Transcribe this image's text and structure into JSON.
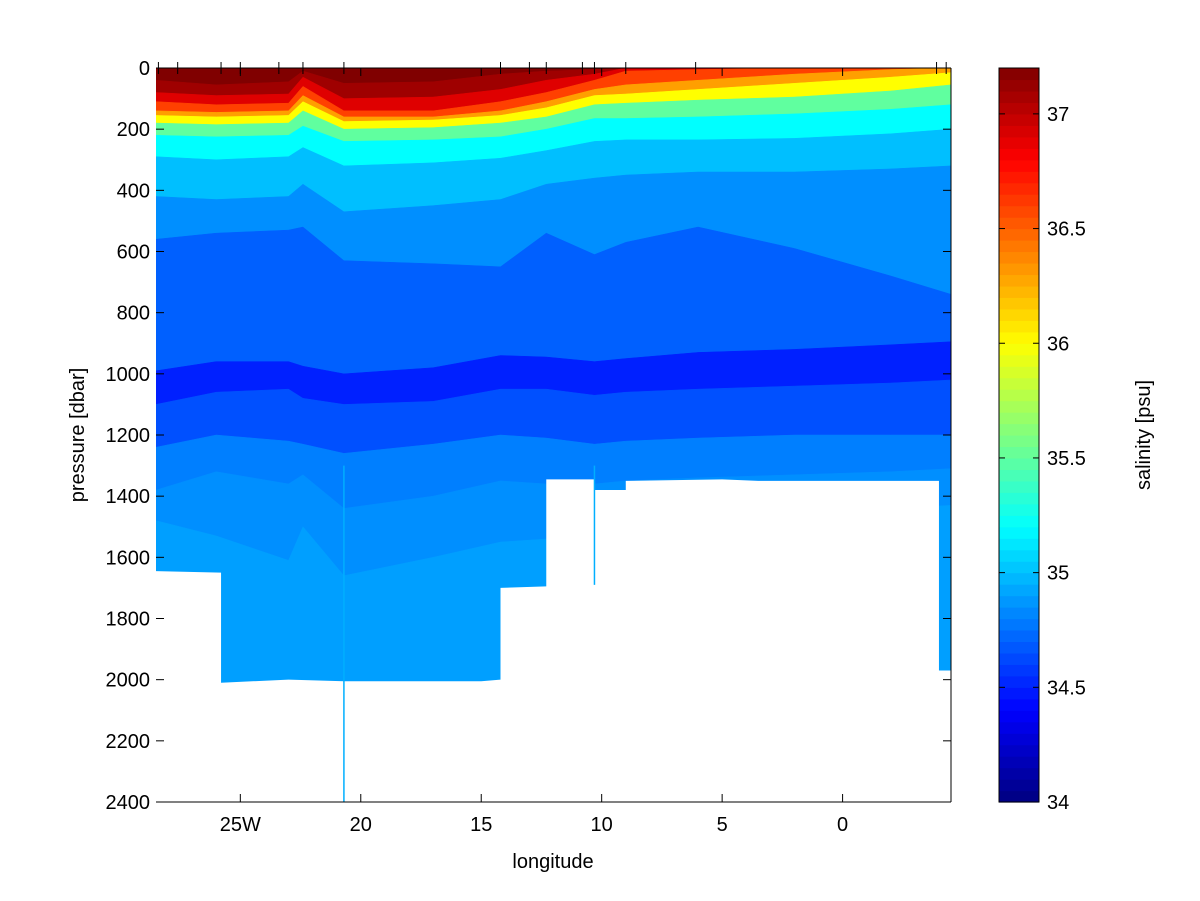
{
  "chart_data": {
    "type": "heatmap",
    "title": "",
    "xlabel": "longitude",
    "ylabel": "pressure [dbar]",
    "colorbar_label": "salinity [psu]",
    "xlim": [
      -28.5,
      4.5
    ],
    "ylim": [
      2400,
      0
    ],
    "clim": [
      34.0,
      37.2
    ],
    "x_ticks": [
      {
        "value": -25,
        "label": "25W"
      },
      {
        "value": -20,
        "label": "20"
      },
      {
        "value": -15,
        "label": "15"
      },
      {
        "value": -10,
        "label": "10"
      },
      {
        "value": -5,
        "label": "5"
      },
      {
        "value": 0,
        "label": "0"
      }
    ],
    "y_ticks": [
      0,
      200,
      400,
      600,
      800,
      1000,
      1200,
      1400,
      1600,
      1800,
      2000,
      2200,
      2400
    ],
    "colorbar_ticks": [
      34,
      34.5,
      35,
      35.5,
      36,
      36.5,
      37
    ],
    "station_longitudes": [
      -28.4,
      -27.6,
      -25.8,
      -25.0,
      -23.4,
      -22.4,
      -20.7,
      -14.2,
      -13.0,
      -12.3,
      -10.8,
      -10.3,
      -9.0,
      -6.1,
      3.9,
      4.3
    ],
    "sections": [
      {
        "x": [
          -28.5,
          -26,
          -23,
          -22.4,
          -20.7,
          -17,
          -14.2,
          -12.3,
          -10.3,
          -9,
          -6,
          -2,
          2,
          4.5
        ],
        "salinity_contours": [
          {
            "level": 37.1,
            "depth": [
              40,
              55,
              45,
              10,
              50,
              45,
              20,
              10,
              5,
              0,
              0,
              0,
              0,
              0
            ]
          },
          {
            "level": 36.9,
            "depth": [
              80,
              90,
              85,
              30,
              100,
              95,
              70,
              40,
              20,
              0,
              0,
              0,
              0,
              0
            ]
          },
          {
            "level": 36.6,
            "depth": [
              110,
              120,
              115,
              60,
              140,
              140,
              110,
              80,
              40,
              10,
              5,
              0,
              0,
              0
            ]
          },
          {
            "level": 36.3,
            "depth": [
              140,
              145,
              140,
              90,
              160,
              160,
              140,
              110,
              70,
              55,
              40,
              20,
              5,
              0
            ]
          },
          {
            "level": 36.0,
            "depth": [
              155,
              160,
              155,
              110,
              175,
              170,
              155,
              130,
              90,
              85,
              70,
              50,
              30,
              15
            ]
          },
          {
            "level": 35.5,
            "depth": [
              180,
              185,
              180,
              140,
              200,
              195,
              180,
              160,
              120,
              115,
              105,
              95,
              75,
              55
            ]
          },
          {
            "level": 35.2,
            "depth": [
              220,
              225,
              220,
              190,
              240,
              235,
              225,
              200,
              165,
              165,
              160,
              150,
              135,
              120
            ]
          },
          {
            "level": 35.0,
            "depth": [
              290,
              300,
              290,
              260,
              320,
              310,
              295,
              270,
              240,
              235,
              235,
              230,
              215,
              200
            ]
          },
          {
            "level": 34.85,
            "depth": [
              420,
              430,
              420,
              380,
              470,
              450,
              430,
              380,
              360,
              350,
              340,
              340,
              330,
              320
            ]
          },
          {
            "level": 34.7,
            "depth": [
              560,
              540,
              530,
              520,
              630,
              640,
              650,
              540,
              610,
              570,
              520,
              590,
              680,
              740
            ]
          },
          {
            "level": 34.5,
            "depth": [
              990,
              960,
              960,
              975,
              1000,
              980,
              940,
              945,
              960,
              950,
              930,
              920,
              905,
              895
            ]
          },
          {
            "level": 34.65,
            "depth": [
              1100,
              1060,
              1050,
              1080,
              1100,
              1090,
              1050,
              1050,
              1070,
              1060,
              1050,
              1040,
              1030,
              1020
            ]
          },
          {
            "level": 34.8,
            "depth": [
              1240,
              1200,
              1220,
              1230,
              1260,
              1230,
              1200,
              1210,
              1230,
              1220,
              1210,
              1200,
              1200,
              1200
            ]
          },
          {
            "level": 34.85,
            "depth": [
              1380,
              1320,
              1360,
              1330,
              1440,
              1400,
              1350,
              1360,
              1360,
              1350,
              1340,
              1330,
              1320,
              1310
            ]
          },
          {
            "level": 34.9,
            "depth": [
              1480,
              1530,
              1610,
              1500,
              1660,
              1600,
              1550,
              1540,
              1500,
              1480,
              1460,
              1450,
              1440,
              1430
            ]
          }
        ]
      }
    ],
    "bottom_mask": [
      {
        "x": -28.5,
        "depth": 1645
      },
      {
        "x": -25.8,
        "depth": 1650
      },
      {
        "x": -25.8,
        "depth": 2010
      },
      {
        "x": -23.0,
        "depth": 2000
      },
      {
        "x": -20.7,
        "depth": 2005
      },
      {
        "x": -15.0,
        "depth": 2005
      },
      {
        "x": -14.2,
        "depth": 2000
      },
      {
        "x": -14.2,
        "depth": 1700
      },
      {
        "x": -12.3,
        "depth": 1695
      },
      {
        "x": -12.3,
        "depth": 1345
      },
      {
        "x": -10.3,
        "depth": 1345
      },
      {
        "x": -10.3,
        "depth": 1380
      },
      {
        "x": -9.0,
        "depth": 1380
      },
      {
        "x": -9.0,
        "depth": 1350
      },
      {
        "x": -5.0,
        "depth": 1345
      },
      {
        "x": -3.5,
        "depth": 1350
      },
      {
        "x": 4.0,
        "depth": 1350
      },
      {
        "x": 4.0,
        "depth": 1970
      },
      {
        "x": 4.5,
        "depth": 1970
      }
    ],
    "thin_columns": [
      {
        "x": -20.7,
        "depth": 2400
      },
      {
        "x": -10.3,
        "depth": 1690
      }
    ]
  }
}
